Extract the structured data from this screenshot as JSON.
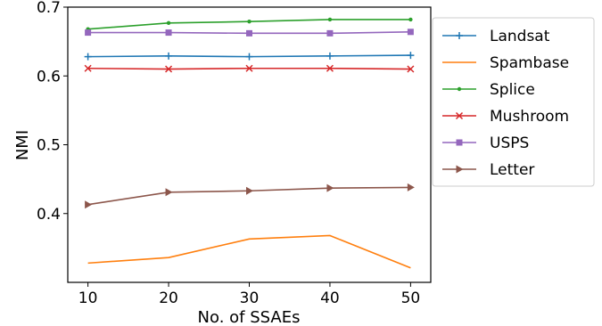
{
  "chart_data": {
    "type": "line",
    "title": "",
    "xlabel": "No. of SSAEs",
    "ylabel": "NMI",
    "x": [
      10,
      20,
      30,
      40,
      50
    ],
    "xticks": [
      "10",
      "20",
      "30",
      "40",
      "50"
    ],
    "yticks": [
      "0.4",
      "0.5",
      "0.6",
      "0.7"
    ],
    "ylim": [
      0.3,
      0.7
    ],
    "xlim": [
      7.5,
      52.5
    ],
    "grid": false,
    "legend_position": "right, outside plot",
    "series": [
      {
        "name": "Landsat",
        "color": "#1f77b4",
        "marker": "plus",
        "values": [
          0.628,
          0.629,
          0.628,
          0.629,
          0.63
        ]
      },
      {
        "name": "Spambase",
        "color": "#ff7f0e",
        "marker": "none",
        "values": [
          0.328,
          0.336,
          0.363,
          0.368,
          0.321
        ]
      },
      {
        "name": "Splice",
        "color": "#2ca02c",
        "marker": "dot",
        "values": [
          0.668,
          0.677,
          0.679,
          0.682,
          0.682
        ]
      },
      {
        "name": "Mushroom",
        "color": "#d62728",
        "marker": "x",
        "values": [
          0.611,
          0.61,
          0.611,
          0.611,
          0.61
        ]
      },
      {
        "name": "USPS",
        "color": "#9467bd",
        "marker": "square",
        "values": [
          0.663,
          0.663,
          0.662,
          0.662,
          0.664
        ]
      },
      {
        "name": "Letter",
        "color": "#8c564b",
        "marker": "triangle",
        "values": [
          0.413,
          0.431,
          0.433,
          0.437,
          0.438
        ]
      }
    ]
  }
}
